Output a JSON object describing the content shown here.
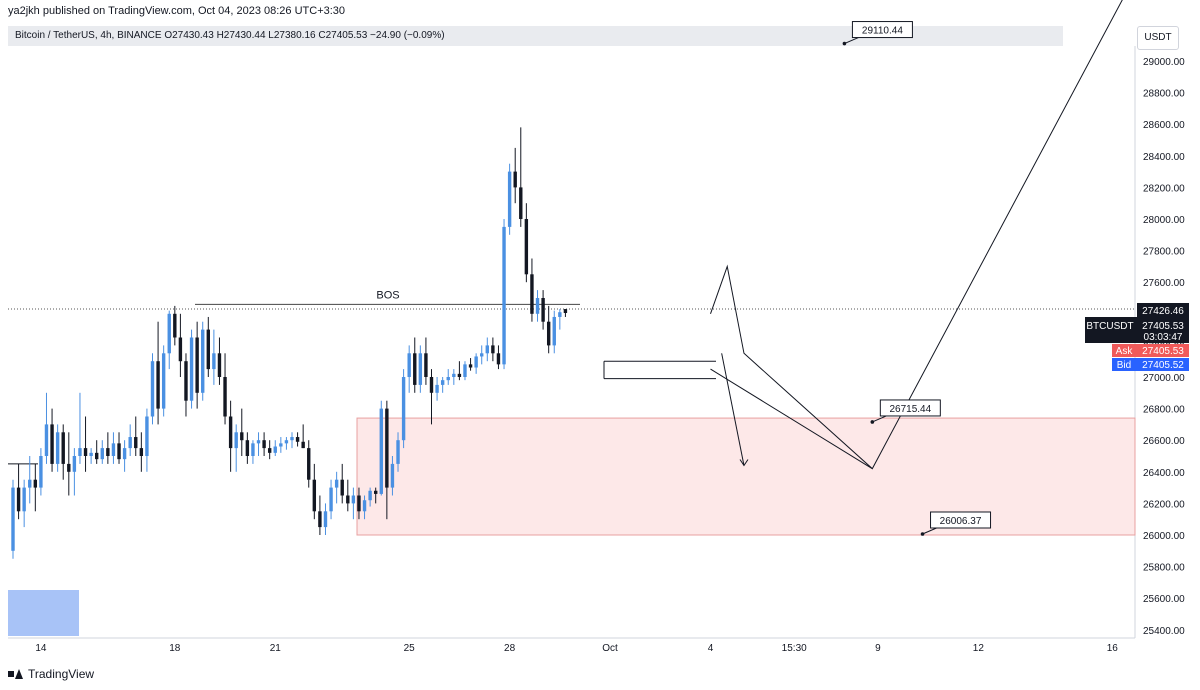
{
  "caption": "ya2jkh published on TradingView.com, Oct 04, 2023 08:26 UTC+3:30",
  "legend": "Bitcoin / TetherUS, 4h, BINANCE  O27430.43  H27430.44  L27380.16  C27405.53  −24.90 (−0.09%)",
  "currency": "USDT",
  "brand": "TradingView",
  "colors": {
    "up": "#4a90e2",
    "down": "#131722",
    "zone_fill": "#fde8e8",
    "zone_stroke": "#e8a0a0",
    "ask": "#f05a5a",
    "bid": "#2962ff",
    "blue_box": "#a8c3f7"
  },
  "chart_data": {
    "type": "candlestick",
    "symbol": "BTCUSDT",
    "timeframe": "4h",
    "ylim": [
      25300,
      29300
    ],
    "y_ticks": [
      29000,
      28800,
      28600,
      28400,
      28200,
      28000,
      27800,
      27600,
      27400,
      27200,
      27000,
      26800,
      26600,
      26400,
      26200,
      26000,
      25800,
      25600,
      25400
    ],
    "y_tick_labels": [
      "29000.00",
      "28800.00",
      "28600.00",
      "28400.00",
      "28200.00",
      "28000.00",
      "27800.00",
      "27600.00",
      "27400.00",
      "27200.00",
      "27000.00",
      "26800.00",
      "26600.00",
      "26400.00",
      "26200.00",
      "26000.00",
      "25800.00",
      "25600.00",
      "25400.00"
    ],
    "x_ticks": [
      {
        "label": "14",
        "t": 6
      },
      {
        "label": "18",
        "t": 30
      },
      {
        "label": "21",
        "t": 48
      },
      {
        "label": "25",
        "t": 72
      },
      {
        "label": "28",
        "t": 90
      },
      {
        "label": "Oct",
        "t": 108
      },
      {
        "label": "4",
        "t": 126
      },
      {
        "label": "15:30",
        "t": 141
      },
      {
        "label": "9",
        "t": 156
      },
      {
        "label": "12",
        "t": 174
      },
      {
        "label": "16",
        "t": 198
      }
    ],
    "candles": [
      [
        25900,
        26350,
        25850,
        26300
      ],
      [
        26300,
        26450,
        26100,
        26150
      ],
      [
        26150,
        26350,
        26050,
        26300
      ],
      [
        26300,
        26500,
        26200,
        26350
      ],
      [
        26350,
        26450,
        26150,
        26300
      ],
      [
        26300,
        26550,
        26250,
        26500
      ],
      [
        26500,
        26900,
        26450,
        26700
      ],
      [
        26700,
        26800,
        26400,
        26450
      ],
      [
        26450,
        26700,
        26400,
        26650
      ],
      [
        26650,
        26700,
        26350,
        26450
      ],
      [
        26450,
        26650,
        26250,
        26400
      ],
      [
        26400,
        26550,
        26250,
        26500
      ],
      [
        26500,
        26900,
        26450,
        26550
      ],
      [
        26550,
        26750,
        26400,
        26500
      ],
      [
        26500,
        26550,
        26450,
        26520
      ],
      [
        26520,
        26600,
        26450,
        26480
      ],
      [
        26480,
        26600,
        26450,
        26550
      ],
      [
        26550,
        26650,
        26450,
        26500
      ],
      [
        26500,
        26650,
        26450,
        26580
      ],
      [
        26580,
        26650,
        26450,
        26480
      ],
      [
        26480,
        26600,
        26400,
        26550
      ],
      [
        26550,
        26700,
        26500,
        26620
      ],
      [
        26620,
        26750,
        26500,
        26550
      ],
      [
        26550,
        26650,
        26400,
        26500
      ],
      [
        26500,
        26800,
        26400,
        26750
      ],
      [
        26750,
        27150,
        26700,
        27100
      ],
      [
        27100,
        27350,
        26700,
        26800
      ],
      [
        26800,
        27200,
        26750,
        27150
      ],
      [
        27150,
        27420,
        27050,
        27400
      ],
      [
        27400,
        27450,
        27200,
        27250
      ],
      [
        27250,
        27400,
        27000,
        27100
      ],
      [
        27100,
        27150,
        26750,
        26850
      ],
      [
        26850,
        27300,
        26800,
        27250
      ],
      [
        27250,
        27350,
        26800,
        26900
      ],
      [
        26900,
        27350,
        26850,
        27300
      ],
      [
        27300,
        27380,
        27000,
        27050
      ],
      [
        27050,
        27300,
        26950,
        27150
      ],
      [
        27150,
        27250,
        26950,
        27000
      ],
      [
        27000,
        27150,
        26700,
        26750
      ],
      [
        26750,
        26850,
        26400,
        26550
      ],
      [
        26550,
        26700,
        26400,
        26650
      ],
      [
        26650,
        26800,
        26500,
        26600
      ],
      [
        26600,
        26650,
        26450,
        26500
      ],
      [
        26500,
        26600,
        26450,
        26580
      ],
      [
        26580,
        26650,
        26500,
        26600
      ],
      [
        26600,
        26650,
        26500,
        26550
      ],
      [
        26550,
        26600,
        26480,
        26520
      ],
      [
        26520,
        26600,
        26500,
        26560
      ],
      [
        26560,
        26620,
        26520,
        26580
      ],
      [
        26580,
        26620,
        26540,
        26600
      ],
      [
        26600,
        26650,
        26550,
        26620
      ],
      [
        26620,
        26650,
        26560,
        26590
      ],
      [
        26590,
        26700,
        26550,
        26550
      ],
      [
        26550,
        26600,
        26300,
        26350
      ],
      [
        26350,
        26450,
        26100,
        26150
      ],
      [
        26150,
        26250,
        26000,
        26050
      ],
      [
        26050,
        26200,
        26000,
        26150
      ],
      [
        26150,
        26350,
        26100,
        26300
      ],
      [
        26300,
        26400,
        26200,
        26350
      ],
      [
        26350,
        26450,
        26200,
        26250
      ],
      [
        26250,
        26350,
        26150,
        26200
      ],
      [
        26200,
        26300,
        26100,
        26250
      ],
      [
        26250,
        26300,
        26100,
        26150
      ],
      [
        26150,
        26250,
        26100,
        26220
      ],
      [
        26220,
        26300,
        26180,
        26280
      ],
      [
        26280,
        26300,
        26200,
        26260
      ],
      [
        26260,
        26850,
        26250,
        26800
      ],
      [
        26800,
        26850,
        26100,
        26300
      ],
      [
        26300,
        26500,
        26250,
        26450
      ],
      [
        26450,
        26650,
        26400,
        26600
      ],
      [
        26600,
        27050,
        26550,
        27000
      ],
      [
        27000,
        27200,
        26900,
        27150
      ],
      [
        27150,
        27250,
        26900,
        26950
      ],
      [
        26950,
        27200,
        26900,
        27150
      ],
      [
        27150,
        27250,
        26950,
        27000
      ],
      [
        27000,
        27050,
        26700,
        26900
      ],
      [
        26900,
        27000,
        26850,
        26950
      ],
      [
        26950,
        27000,
        26900,
        26980
      ],
      [
        26980,
        27050,
        26950,
        27000
      ],
      [
        27000,
        27050,
        26950,
        27020
      ],
      [
        27020,
        27100,
        26980,
        27000
      ],
      [
        27000,
        27100,
        26980,
        27080
      ],
      [
        27080,
        27120,
        27040,
        27060
      ],
      [
        27060,
        27150,
        27020,
        27130
      ],
      [
        27130,
        27200,
        27080,
        27150
      ],
      [
        27150,
        27250,
        27100,
        27200
      ],
      [
        27200,
        27250,
        27100,
        27150
      ],
      [
        27150,
        27200,
        27050,
        27080
      ],
      [
        27080,
        28000,
        27050,
        27950
      ],
      [
        27950,
        28350,
        27900,
        28300
      ],
      [
        28300,
        28450,
        28100,
        28200
      ],
      [
        28200,
        28580,
        27950,
        28000
      ],
      [
        28000,
        28100,
        27600,
        27650
      ],
      [
        27650,
        27750,
        27350,
        27400
      ],
      [
        27400,
        27550,
        27350,
        27500
      ],
      [
        27500,
        27550,
        27300,
        27350
      ],
      [
        27350,
        27450,
        27150,
        27200
      ],
      [
        27200,
        27420,
        27150,
        27380
      ],
      [
        27380,
        27430,
        27300,
        27410
      ],
      [
        27430,
        27430,
        27380,
        27405
      ]
    ],
    "level_lines": {
      "bos_label": "BOS",
      "bos_price": 27460,
      "dotted_price": 27430,
      "pd_high": 27100,
      "pd_low": 26990
    },
    "demand_zone": {
      "top": 26740,
      "bottom": 26000
    },
    "projection_path": [
      [
        126,
        27400
      ],
      [
        129,
        27700
      ],
      [
        132,
        27150
      ],
      [
        155,
        26420
      ],
      [
        200,
        29400
      ]
    ],
    "projection_arrow": [
      [
        128,
        27150
      ],
      [
        132,
        26440
      ]
    ],
    "annotations": [
      {
        "label": "26715.44",
        "price": 26715.44,
        "t": 155
      },
      {
        "label": "26006.37",
        "price": 26006.37,
        "t": 164
      },
      {
        "label": "29110.44",
        "price": 29110.44,
        "t": 150
      }
    ],
    "price_labels": {
      "last": "27426.46",
      "ticker": "BTCUSDT",
      "ticker_price": "27405.53",
      "countdown": "03:03:47",
      "ask_label": "Ask",
      "ask_price": "27405.53",
      "bid_label": "Bid",
      "bid_price": "27405.52"
    }
  }
}
